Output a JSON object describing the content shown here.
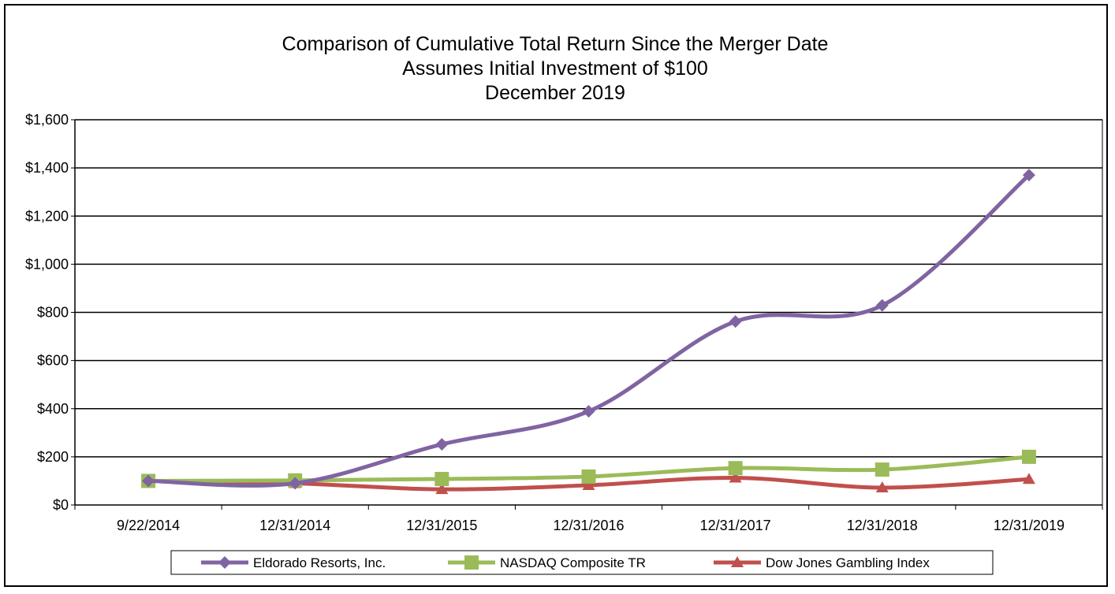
{
  "chart_data": {
    "type": "line",
    "title": "Comparison of Cumulative Total Return Since the Merger Date",
    "subtitle_1": "Assumes Initial Investment of $100",
    "subtitle_2": "December 2019",
    "categories": [
      "9/22/2014",
      "12/31/2014",
      "12/31/2015",
      "12/31/2016",
      "12/31/2017",
      "12/31/2018",
      "12/31/2019"
    ],
    "y_tick_labels": [
      "$0",
      "$200",
      "$400",
      "$600",
      "$800",
      "$1,000",
      "$1,200",
      "$1,400",
      "$1,600"
    ],
    "ylim": [
      0,
      1600
    ],
    "y_step": 200,
    "grid": true,
    "legend_position": "bottom",
    "series": [
      {
        "name": "Eldorado Resorts, Inc.",
        "color": "#8064a2",
        "marker": "diamond",
        "values": [
          100,
          90,
          252,
          389,
          762,
          829,
          1370
        ]
      },
      {
        "name": "NASDAQ Composite TR",
        "color": "#9bbb59",
        "marker": "square",
        "values": [
          100,
          102,
          108,
          118,
          153,
          147,
          200
        ]
      },
      {
        "name": "Dow Jones Gambling Index",
        "color": "#c0504d",
        "marker": "triangle",
        "values": [
          100,
          90,
          65,
          82,
          113,
          72,
          107
        ]
      }
    ]
  }
}
